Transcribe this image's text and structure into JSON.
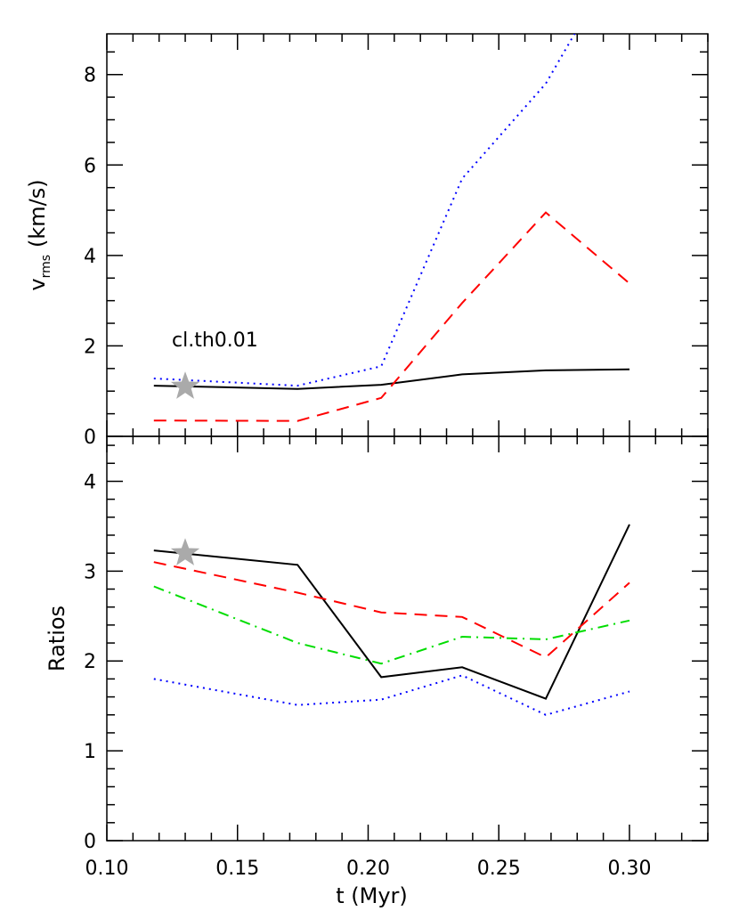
{
  "chart_data": [
    {
      "type": "line",
      "panel": "top",
      "ylabel_main": "v",
      "ylabel_sub": "rms",
      "ylabel_units": "(km/s)",
      "xlim": [
        0.1,
        0.33
      ],
      "ylim": [
        0,
        8.9
      ],
      "yticks": [
        0,
        2,
        4,
        6,
        8
      ],
      "x": [
        0.118,
        0.173,
        0.205,
        0.236,
        0.268,
        0.3
      ],
      "series": [
        {
          "color": "#000000",
          "dash": "solid",
          "values": [
            1.12,
            1.05,
            1.14,
            1.37,
            1.46,
            1.48
          ]
        },
        {
          "color": "#ff0000",
          "dash": "dashed",
          "values": [
            0.35,
            0.34,
            0.85,
            2.95,
            4.95,
            3.38
          ]
        },
        {
          "color": "#0000ff",
          "dash": "dotted",
          "values": [
            1.28,
            1.12,
            1.55,
            5.7,
            7.8,
            11.0
          ]
        }
      ],
      "annotation": "cl.th0.01",
      "marker": {
        "shape": "star",
        "color": "#aaaaaa",
        "x": 0.13,
        "y": 1.1
      }
    },
    {
      "type": "line",
      "panel": "bottom",
      "ylabel": "Ratios",
      "xlabel": "t (Myr)",
      "xlim": [
        0.1,
        0.33
      ],
      "ylim": [
        0,
        4.5
      ],
      "yticks": [
        0,
        1,
        2,
        3,
        4
      ],
      "xticks": [
        0.1,
        0.15,
        0.2,
        0.25,
        0.3
      ],
      "xtick_labels": [
        "0.10",
        "0.15",
        "0.20",
        "0.25",
        "0.30"
      ],
      "x": [
        0.118,
        0.173,
        0.205,
        0.236,
        0.268,
        0.3
      ],
      "series": [
        {
          "color": "#000000",
          "dash": "solid",
          "values": [
            3.23,
            3.07,
            1.82,
            1.93,
            1.58,
            3.52
          ]
        },
        {
          "color": "#ff0000",
          "dash": "dashed",
          "values": [
            3.1,
            2.76,
            2.54,
            2.49,
            2.04,
            2.87
          ]
        },
        {
          "color": "#00dd00",
          "dash": "dashdot",
          "values": [
            2.83,
            2.2,
            1.97,
            2.27,
            2.24,
            2.45
          ]
        },
        {
          "color": "#0000ff",
          "dash": "dotted",
          "values": [
            1.8,
            1.51,
            1.57,
            1.84,
            1.4,
            1.66
          ]
        }
      ],
      "marker": {
        "shape": "star",
        "color": "#aaaaaa",
        "x": 0.13,
        "y": 3.2
      }
    }
  ]
}
